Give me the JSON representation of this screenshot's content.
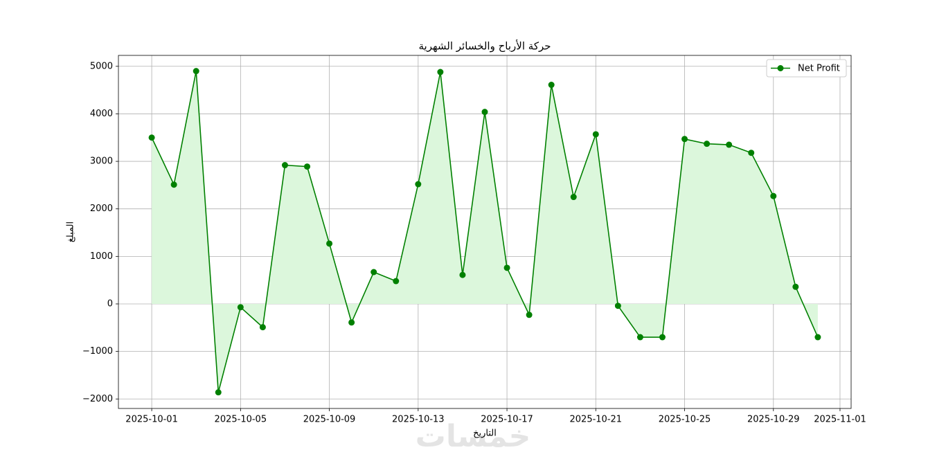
{
  "chart_data": {
    "type": "line",
    "title": "حركة الأرباح والخسائر الشهرية",
    "x_label": "التاريخ",
    "y_label": "المبلغ",
    "watermark": "خمسات",
    "x": [
      "2025-10-01",
      "2025-10-02",
      "2025-10-03",
      "2025-10-04",
      "2025-10-05",
      "2025-10-06",
      "2025-10-07",
      "2025-10-08",
      "2025-10-09",
      "2025-10-10",
      "2025-10-11",
      "2025-10-12",
      "2025-10-13",
      "2025-10-14",
      "2025-10-15",
      "2025-10-16",
      "2025-10-17",
      "2025-10-18",
      "2025-10-19",
      "2025-10-20",
      "2025-10-21",
      "2025-10-22",
      "2025-10-23",
      "2025-10-24",
      "2025-10-25",
      "2025-10-26",
      "2025-10-27",
      "2025-10-28",
      "2025-10-29",
      "2025-10-30",
      "2025-10-31"
    ],
    "series": [
      {
        "name": "Net Profit",
        "color": "#008000",
        "fill_color": "#dcf7dc",
        "values": [
          3500,
          2510,
          4900,
          -1860,
          -70,
          -490,
          2920,
          2890,
          1270,
          -390,
          670,
          480,
          2520,
          4880,
          610,
          4040,
          760,
          -230,
          4610,
          2250,
          3570,
          -40,
          -700,
          -700,
          3470,
          3370,
          3350,
          3180,
          2270,
          360,
          -700
        ]
      }
    ],
    "xlim": [
      "2025-09-29T12:00",
      "2025-11-01T12:00"
    ],
    "xticks": [
      "2025-10-01",
      "2025-10-05",
      "2025-10-09",
      "2025-10-13",
      "2025-10-17",
      "2025-10-21",
      "2025-10-25",
      "2025-10-29",
      "2025-11-01"
    ],
    "ylim": [
      -2200,
      5230
    ],
    "yticks": [
      {
        "value": -2000,
        "label": "−2000"
      },
      {
        "value": -1000,
        "label": "−1000"
      },
      0,
      1000,
      2000,
      3000,
      4000,
      5000
    ],
    "grid": true,
    "legend": "upper right"
  }
}
